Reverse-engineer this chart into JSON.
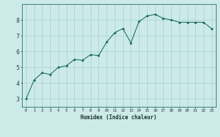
{
  "x": [
    0,
    1,
    2,
    3,
    4,
    5,
    6,
    7,
    8,
    9,
    10,
    11,
    12,
    13,
    14,
    15,
    16,
    17,
    18,
    19,
    20,
    21,
    22,
    23
  ],
  "y": [
    3.0,
    4.2,
    4.65,
    4.55,
    5.0,
    5.1,
    5.5,
    5.45,
    5.8,
    5.75,
    6.6,
    7.2,
    7.45,
    6.55,
    7.9,
    8.25,
    8.35,
    8.1,
    8.0,
    7.85,
    7.85,
    7.85,
    7.85,
    7.45
  ],
  "xlabel": "Humidex (Indice chaleur)",
  "ylim": [
    2.5,
    9.0
  ],
  "xlim": [
    -0.5,
    23.5
  ],
  "bg_color": "#cceae8",
  "grid_color": "#aad4d0",
  "line_color": "#1a6b5a",
  "marker_color": "#1a6b5a",
  "yticks": [
    3,
    4,
    5,
    6,
    7,
    8
  ],
  "xticks": [
    0,
    1,
    2,
    3,
    4,
    5,
    6,
    7,
    8,
    9,
    10,
    11,
    12,
    13,
    14,
    15,
    16,
    17,
    18,
    19,
    20,
    21,
    22,
    23
  ]
}
